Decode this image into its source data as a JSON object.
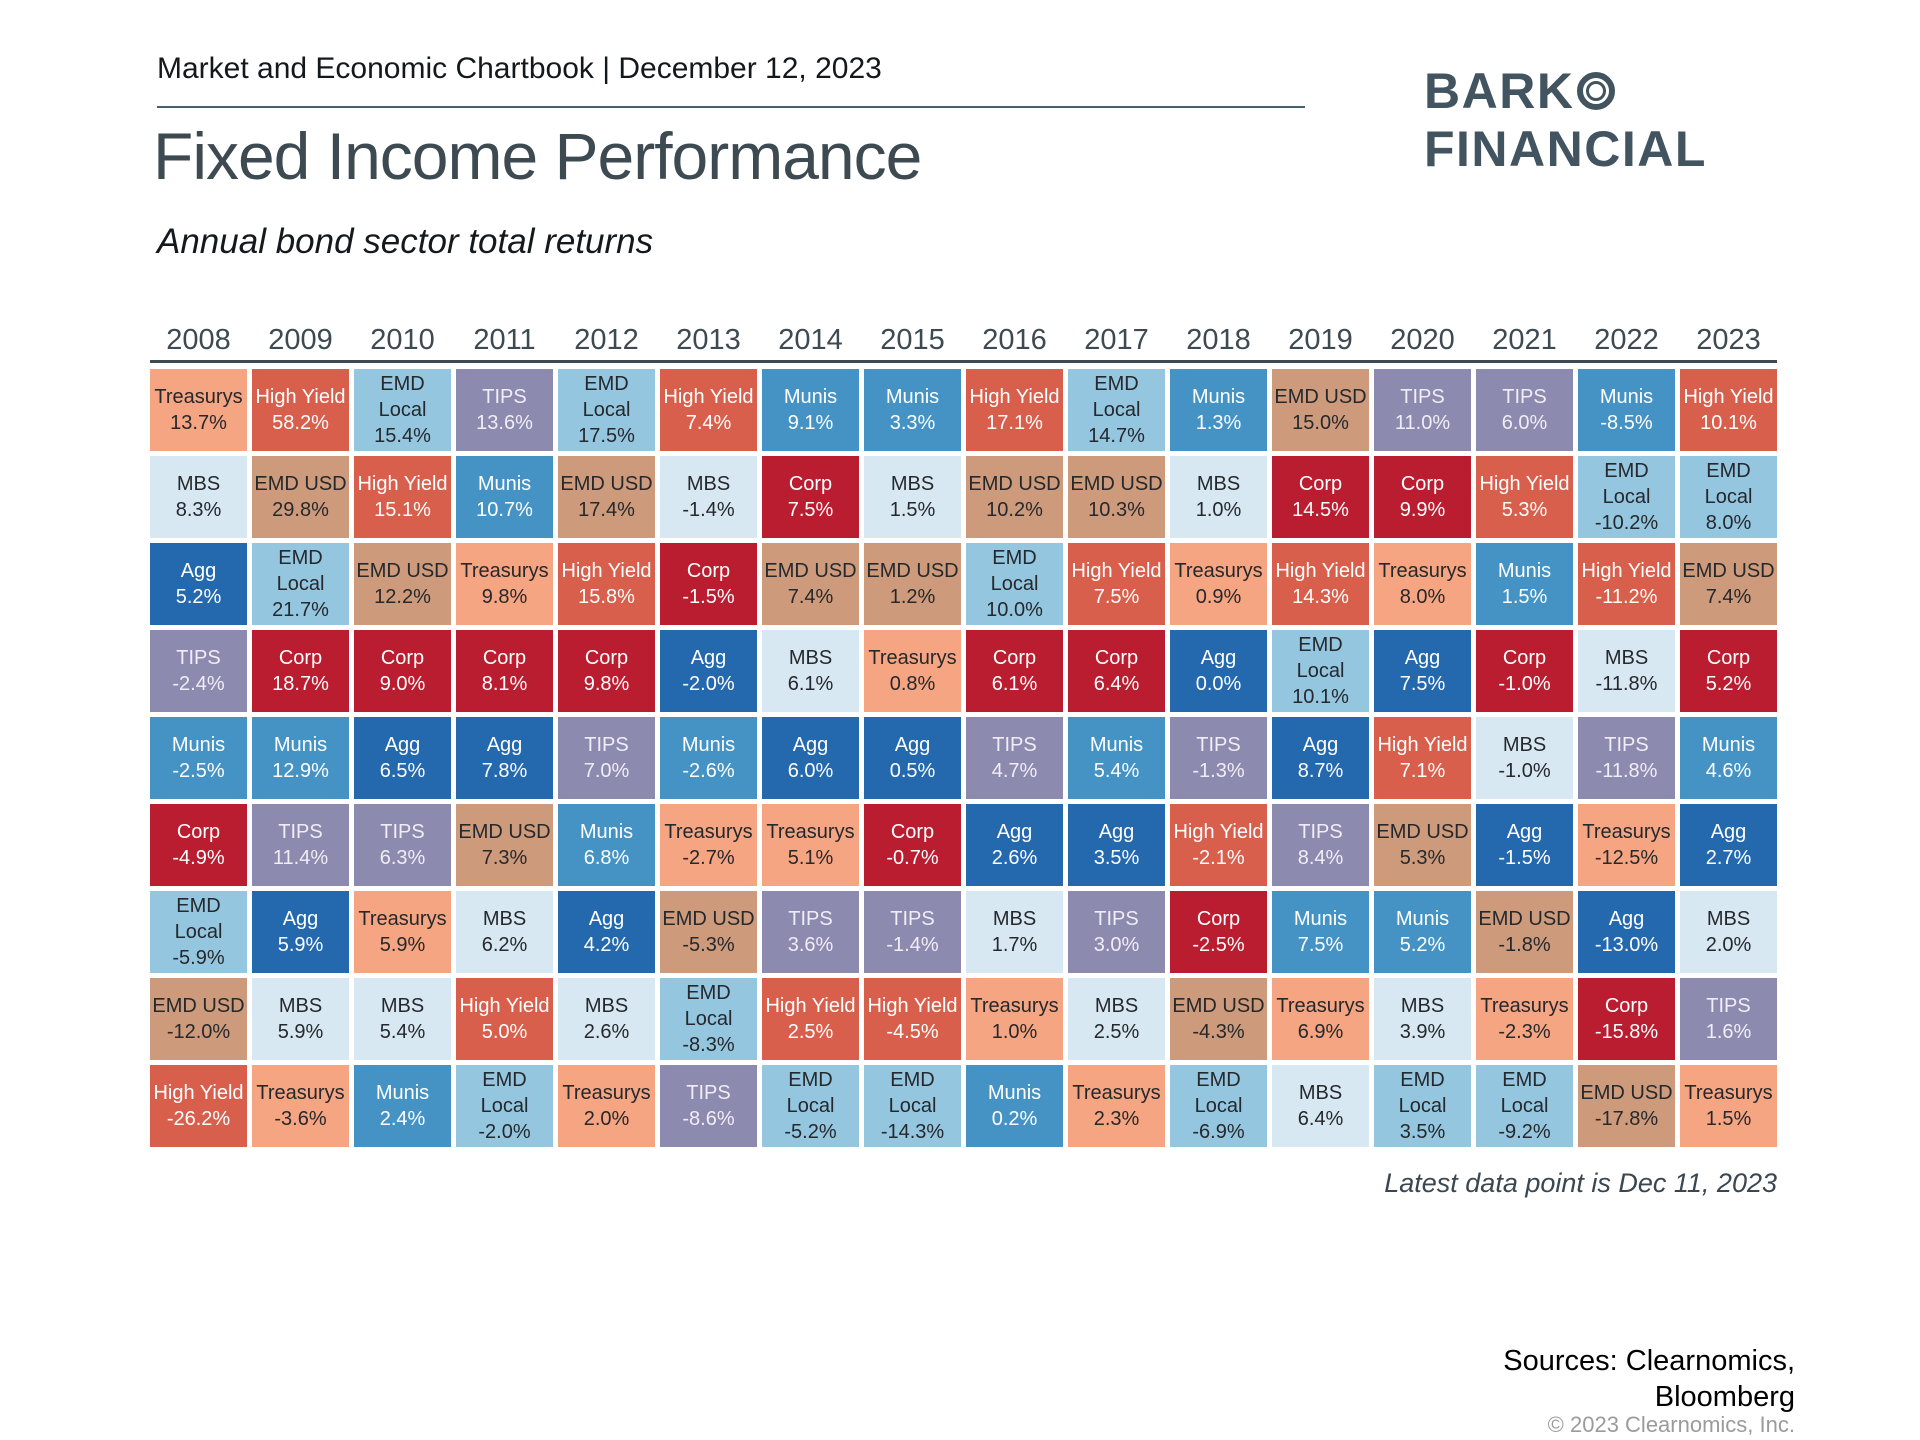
{
  "header": {
    "eyebrow": "Market and Economic Chartbook | December 12, 2023",
    "title": "Fixed Income Performance",
    "subtitle": "Annual bond sector total returns"
  },
  "logo": {
    "line1": "BARK",
    "line2": "FINANCIAL",
    "ring_icon": "double-circle",
    "color": "#42545f"
  },
  "footer": {
    "note": "Latest data point is Dec 11, 2023",
    "sources_line1": "Sources: Clearnomics,",
    "sources_line2": "Bloomberg",
    "copyright": "© 2023 Clearnomics, Inc."
  },
  "sector_colors": {
    "Treasurys": {
      "bg": "#F5A581",
      "fg": "#25282c"
    },
    "High Yield": {
      "bg": "#D75F4C",
      "fg": "#ffffff"
    },
    "EMD Local": {
      "bg": "#94C6DF",
      "fg": "#25282c"
    },
    "EMD USD": {
      "bg": "#CD9B7B",
      "fg": "#25282c"
    },
    "TIPS": {
      "bg": "#8D8AAF",
      "fg": "#efedf5"
    },
    "MBS": {
      "bg": "#D8E8F2",
      "fg": "#25282c"
    },
    "Munis": {
      "bg": "#4493C4",
      "fg": "#ffffff"
    },
    "Agg": {
      "bg": "#2468AD",
      "fg": "#ffffff"
    },
    "Corp": {
      "bg": "#BA1C30",
      "fg": "#ffffff"
    }
  },
  "chart_data": {
    "type": "table",
    "subtype": "return-quilt-heatmap",
    "title": "Fixed Income Performance",
    "subtitle": "Annual bond sector total returns",
    "value_unit": "%",
    "rows_meaning": "sectors ranked best (top) to worst (bottom) within each year",
    "years": [
      "2008",
      "2009",
      "2010",
      "2011",
      "2012",
      "2013",
      "2014",
      "2015",
      "2016",
      "2017",
      "2018",
      "2019",
      "2020",
      "2021",
      "2022",
      "2023"
    ],
    "columns": [
      {
        "year": "2008",
        "cells": [
          {
            "s": "Treasurys",
            "v": 13.7
          },
          {
            "s": "MBS",
            "v": 8.3
          },
          {
            "s": "Agg",
            "v": 5.2
          },
          {
            "s": "TIPS",
            "v": -2.4
          },
          {
            "s": "Munis",
            "v": -2.5
          },
          {
            "s": "Corp",
            "v": -4.9
          },
          {
            "s": "EMD Local",
            "v": -5.9
          },
          {
            "s": "EMD USD",
            "v": -12.0
          },
          {
            "s": "High Yield",
            "v": -26.2
          }
        ]
      },
      {
        "year": "2009",
        "cells": [
          {
            "s": "High Yield",
            "v": 58.2
          },
          {
            "s": "EMD USD",
            "v": 29.8
          },
          {
            "s": "EMD Local",
            "v": 21.7
          },
          {
            "s": "Corp",
            "v": 18.7
          },
          {
            "s": "Munis",
            "v": 12.9
          },
          {
            "s": "TIPS",
            "v": 11.4
          },
          {
            "s": "Agg",
            "v": 5.9
          },
          {
            "s": "MBS",
            "v": 5.9
          },
          {
            "s": "Treasurys",
            "v": -3.6
          }
        ]
      },
      {
        "year": "2010",
        "cells": [
          {
            "s": "EMD Local",
            "v": 15.4
          },
          {
            "s": "High Yield",
            "v": 15.1
          },
          {
            "s": "EMD USD",
            "v": 12.2
          },
          {
            "s": "Corp",
            "v": 9.0
          },
          {
            "s": "Agg",
            "v": 6.5
          },
          {
            "s": "TIPS",
            "v": 6.3
          },
          {
            "s": "Treasurys",
            "v": 5.9
          },
          {
            "s": "MBS",
            "v": 5.4
          },
          {
            "s": "Munis",
            "v": 2.4
          }
        ]
      },
      {
        "year": "2011",
        "cells": [
          {
            "s": "TIPS",
            "v": 13.6
          },
          {
            "s": "Munis",
            "v": 10.7
          },
          {
            "s": "Treasurys",
            "v": 9.8
          },
          {
            "s": "Corp",
            "v": 8.1
          },
          {
            "s": "Agg",
            "v": 7.8
          },
          {
            "s": "EMD USD",
            "v": 7.3
          },
          {
            "s": "MBS",
            "v": 6.2
          },
          {
            "s": "High Yield",
            "v": 5.0
          },
          {
            "s": "EMD Local",
            "v": -2.0
          }
        ]
      },
      {
        "year": "2012",
        "cells": [
          {
            "s": "EMD Local",
            "v": 17.5
          },
          {
            "s": "EMD USD",
            "v": 17.4
          },
          {
            "s": "High Yield",
            "v": 15.8
          },
          {
            "s": "Corp",
            "v": 9.8
          },
          {
            "s": "TIPS",
            "v": 7.0
          },
          {
            "s": "Munis",
            "v": 6.8
          },
          {
            "s": "Agg",
            "v": 4.2
          },
          {
            "s": "MBS",
            "v": 2.6
          },
          {
            "s": "Treasurys",
            "v": 2.0
          }
        ]
      },
      {
        "year": "2013",
        "cells": [
          {
            "s": "High Yield",
            "v": 7.4
          },
          {
            "s": "MBS",
            "v": -1.4
          },
          {
            "s": "Corp",
            "v": -1.5
          },
          {
            "s": "Agg",
            "v": -2.0
          },
          {
            "s": "Munis",
            "v": -2.6
          },
          {
            "s": "Treasurys",
            "v": -2.7
          },
          {
            "s": "EMD USD",
            "v": -5.3
          },
          {
            "s": "EMD Local",
            "v": -8.3
          },
          {
            "s": "TIPS",
            "v": -8.6
          }
        ]
      },
      {
        "year": "2014",
        "cells": [
          {
            "s": "Munis",
            "v": 9.1
          },
          {
            "s": "Corp",
            "v": 7.5
          },
          {
            "s": "EMD USD",
            "v": 7.4
          },
          {
            "s": "MBS",
            "v": 6.1
          },
          {
            "s": "Agg",
            "v": 6.0
          },
          {
            "s": "Treasurys",
            "v": 5.1
          },
          {
            "s": "TIPS",
            "v": 3.6
          },
          {
            "s": "High Yield",
            "v": 2.5
          },
          {
            "s": "EMD Local",
            "v": -5.2
          }
        ]
      },
      {
        "year": "2015",
        "cells": [
          {
            "s": "Munis",
            "v": 3.3
          },
          {
            "s": "MBS",
            "v": 1.5
          },
          {
            "s": "EMD USD",
            "v": 1.2
          },
          {
            "s": "Treasurys",
            "v": 0.8
          },
          {
            "s": "Agg",
            "v": 0.5
          },
          {
            "s": "Corp",
            "v": -0.7
          },
          {
            "s": "TIPS",
            "v": -1.4
          },
          {
            "s": "High Yield",
            "v": -4.5
          },
          {
            "s": "EMD Local",
            "v": -14.3
          }
        ]
      },
      {
        "year": "2016",
        "cells": [
          {
            "s": "High Yield",
            "v": 17.1
          },
          {
            "s": "EMD USD",
            "v": 10.2
          },
          {
            "s": "EMD Local",
            "v": 10.0
          },
          {
            "s": "Corp",
            "v": 6.1
          },
          {
            "s": "TIPS",
            "v": 4.7
          },
          {
            "s": "Agg",
            "v": 2.6
          },
          {
            "s": "MBS",
            "v": 1.7
          },
          {
            "s": "Treasurys",
            "v": 1.0
          },
          {
            "s": "Munis",
            "v": 0.2
          }
        ]
      },
      {
        "year": "2017",
        "cells": [
          {
            "s": "EMD Local",
            "v": 14.7
          },
          {
            "s": "EMD USD",
            "v": 10.3
          },
          {
            "s": "High Yield",
            "v": 7.5
          },
          {
            "s": "Corp",
            "v": 6.4
          },
          {
            "s": "Munis",
            "v": 5.4
          },
          {
            "s": "Agg",
            "v": 3.5
          },
          {
            "s": "TIPS",
            "v": 3.0
          },
          {
            "s": "MBS",
            "v": 2.5
          },
          {
            "s": "Treasurys",
            "v": 2.3
          }
        ]
      },
      {
        "year": "2018",
        "cells": [
          {
            "s": "Munis",
            "v": 1.3
          },
          {
            "s": "MBS",
            "v": 1.0
          },
          {
            "s": "Treasurys",
            "v": 0.9
          },
          {
            "s": "Agg",
            "v": 0.0
          },
          {
            "s": "TIPS",
            "v": -1.3
          },
          {
            "s": "High Yield",
            "v": -2.1
          },
          {
            "s": "Corp",
            "v": -2.5
          },
          {
            "s": "EMD USD",
            "v": -4.3
          },
          {
            "s": "EMD Local",
            "v": -6.9
          }
        ]
      },
      {
        "year": "2019",
        "cells": [
          {
            "s": "EMD USD",
            "v": 15.0
          },
          {
            "s": "Corp",
            "v": 14.5
          },
          {
            "s": "High Yield",
            "v": 14.3
          },
          {
            "s": "EMD Local",
            "v": 10.1
          },
          {
            "s": "Agg",
            "v": 8.7
          },
          {
            "s": "TIPS",
            "v": 8.4
          },
          {
            "s": "Munis",
            "v": 7.5
          },
          {
            "s": "Treasurys",
            "v": 6.9
          },
          {
            "s": "MBS",
            "v": 6.4
          }
        ]
      },
      {
        "year": "2020",
        "cells": [
          {
            "s": "TIPS",
            "v": 11.0
          },
          {
            "s": "Corp",
            "v": 9.9
          },
          {
            "s": "Treasurys",
            "v": 8.0
          },
          {
            "s": "Agg",
            "v": 7.5
          },
          {
            "s": "High Yield",
            "v": 7.1
          },
          {
            "s": "EMD USD",
            "v": 5.3
          },
          {
            "s": "Munis",
            "v": 5.2
          },
          {
            "s": "MBS",
            "v": 3.9
          },
          {
            "s": "EMD Local",
            "v": 3.5
          }
        ]
      },
      {
        "year": "2021",
        "cells": [
          {
            "s": "TIPS",
            "v": 6.0
          },
          {
            "s": "High Yield",
            "v": 5.3
          },
          {
            "s": "Munis",
            "v": 1.5
          },
          {
            "s": "Corp",
            "v": -1.0
          },
          {
            "s": "MBS",
            "v": -1.0
          },
          {
            "s": "Agg",
            "v": -1.5
          },
          {
            "s": "EMD USD",
            "v": -1.8
          },
          {
            "s": "Treasurys",
            "v": -2.3
          },
          {
            "s": "EMD Local",
            "v": -9.2
          }
        ]
      },
      {
        "year": "2022",
        "cells": [
          {
            "s": "Munis",
            "v": -8.5
          },
          {
            "s": "EMD Local",
            "v": -10.2
          },
          {
            "s": "High Yield",
            "v": -11.2
          },
          {
            "s": "MBS",
            "v": -11.8
          },
          {
            "s": "TIPS",
            "v": -11.8
          },
          {
            "s": "Treasurys",
            "v": -12.5
          },
          {
            "s": "Agg",
            "v": -13.0
          },
          {
            "s": "Corp",
            "v": -15.8
          },
          {
            "s": "EMD USD",
            "v": -17.8
          }
        ]
      },
      {
        "year": "2023",
        "cells": [
          {
            "s": "High Yield",
            "v": 10.1
          },
          {
            "s": "EMD Local",
            "v": 8.0
          },
          {
            "s": "EMD USD",
            "v": 7.4
          },
          {
            "s": "Corp",
            "v": 5.2
          },
          {
            "s": "Munis",
            "v": 4.6
          },
          {
            "s": "Agg",
            "v": 2.7
          },
          {
            "s": "MBS",
            "v": 2.0
          },
          {
            "s": "TIPS",
            "v": 1.6
          },
          {
            "s": "Treasurys",
            "v": 1.5
          }
        ]
      }
    ]
  }
}
